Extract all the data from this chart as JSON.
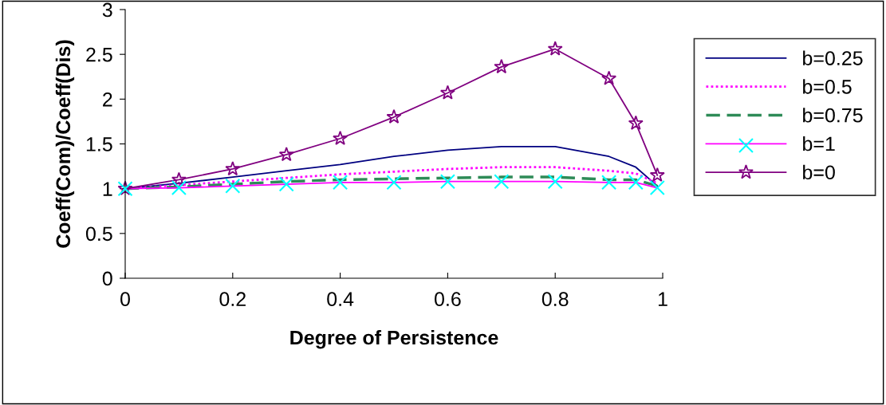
{
  "chart_data": {
    "type": "line",
    "xlabel": "Degree of Persistence",
    "ylabel": "Coeff(Com)/Coeff(Dis)",
    "x": [
      0,
      0.1,
      0.2,
      0.3,
      0.4,
      0.5,
      0.6,
      0.7,
      0.8,
      0.9,
      0.95,
      0.99
    ],
    "series": [
      {
        "name": "b=0.25",
        "color": "#000080",
        "line_style": "solid",
        "marker": "none",
        "values": [
          1,
          1.06,
          1.13,
          1.2,
          1.27,
          1.36,
          1.43,
          1.47,
          1.47,
          1.36,
          1.24,
          1.03
        ]
      },
      {
        "name": "b=0.5",
        "color": "#ff00ff",
        "line_style": "dotted",
        "marker": "none",
        "values": [
          1,
          1.04,
          1.08,
          1.12,
          1.16,
          1.19,
          1.22,
          1.24,
          1.24,
          1.2,
          1.17,
          1.06
        ]
      },
      {
        "name": "b=0.75",
        "color": "#2e8b57",
        "line_style": "dashed",
        "marker": "none",
        "values": [
          1,
          1.02,
          1.05,
          1.08,
          1.1,
          1.11,
          1.12,
          1.13,
          1.13,
          1.1,
          1.1,
          1.03
        ]
      },
      {
        "name": "b=1",
        "color": "#ff00ff",
        "colors": [
          "#00ffff",
          "#00ffff",
          "#00ffff",
          "#00ffff",
          "#00ffff",
          "#00ffff",
          "#00ffff",
          "#00ffff",
          "#00ffff",
          "#00ffff",
          "#00ffff",
          "#00ffff"
        ],
        "line_style": "solid",
        "marker": "cross",
        "values": [
          1,
          1.01,
          1.03,
          1.05,
          1.07,
          1.07,
          1.08,
          1.08,
          1.08,
          1.07,
          1.07,
          1.01
        ]
      },
      {
        "name": "b=0",
        "color": "#800080",
        "line_style": "solid",
        "marker": "star",
        "values": [
          1,
          1.1,
          1.22,
          1.38,
          1.56,
          1.8,
          2.07,
          2.36,
          2.56,
          2.23,
          1.73,
          1.15
        ]
      }
    ],
    "xlim": [
      0,
      1
    ],
    "xticks": [
      0,
      0.2,
      0.4,
      0.6,
      0.8,
      1
    ],
    "ylim": [
      0,
      3
    ],
    "yticks": [
      0,
      0.5,
      1,
      1.5,
      2,
      2.5,
      3
    ],
    "grid": false,
    "legend": "right"
  }
}
